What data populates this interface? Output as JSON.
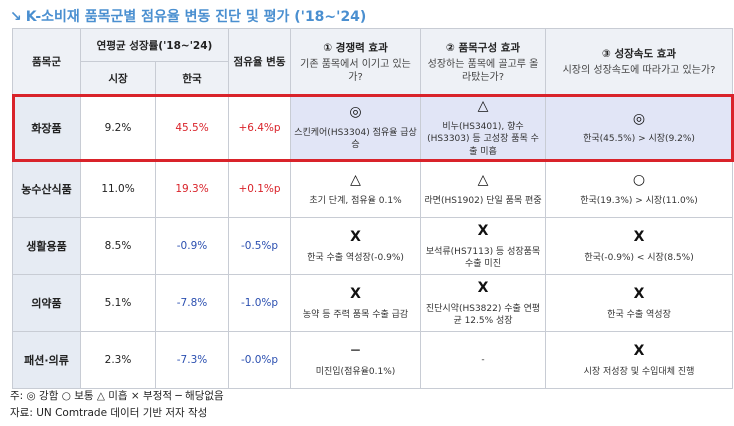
{
  "header": {
    "icon": "↘",
    "title": "K-소비재 품목군별 점유율 변동 진단 및 평가 ('18~'24)"
  },
  "table": {
    "columns": {
      "group": "품목군",
      "growth": "연평균 성장률('18~'24)",
      "market": "시장",
      "korea": "한국",
      "change": "점유율 변동",
      "effects": [
        {
          "title": "① 경쟁력 효과",
          "question": "기존 품목에서 이기고 있는가?"
        },
        {
          "title": "② 품목구성 효과",
          "question": "성장하는 품목에 골고루 올라탔는가?"
        },
        {
          "title": "③ 성장속도 효과",
          "question": "시장의 성장속도에 따라가고 있는가?"
        }
      ]
    },
    "rows": [
      {
        "name": "화장품",
        "market": "9.2%",
        "korea": "45.5%",
        "change": "+6.4%p",
        "effects": [
          {
            "mark": "◎",
            "text": "스킨케어(HS3304) 점유율 급상승"
          },
          {
            "mark": "△",
            "text": "비누(HS3401), 향수(HS3303) 등 고성장 품목 수출 미흡"
          },
          {
            "mark": "◎",
            "text": "한국(45.5%) > 시장(9.2%)"
          }
        ]
      },
      {
        "name": "농수산식품",
        "market": "11.0%",
        "korea": "19.3%",
        "change": "+0.1%p",
        "effects": [
          {
            "mark": "△",
            "text": "초기 단계, 점유율 0.1%"
          },
          {
            "mark": "△",
            "text": "라면(HS1902) 단일 품목 편중"
          },
          {
            "mark": "○",
            "text": "한국(19.3%) > 시장(11.0%)"
          }
        ]
      },
      {
        "name": "생활용품",
        "market": "8.5%",
        "korea": "-0.9%",
        "change": "-0.5%p",
        "effects": [
          {
            "mark": "X",
            "text": "한국 수출 역성장(-0.9%)"
          },
          {
            "mark": "X",
            "text": "보석류(HS7113) 등 성장품목 수출 미진"
          },
          {
            "mark": "X",
            "text": "한국(-0.9%) < 시장(8.5%)"
          }
        ]
      },
      {
        "name": "의약품",
        "market": "5.1%",
        "korea": "-7.8%",
        "change": "-1.0%p",
        "effects": [
          {
            "mark": "X",
            "text": "농약 등 주력 품목 수출 급감"
          },
          {
            "mark": "X",
            "text": "진단시약(HS3822) 수출 연평균 12.5% 성장"
          },
          {
            "mark": "X",
            "text": "한국 수출 역성장"
          }
        ]
      },
      {
        "name": "패션·의류",
        "market": "2.3%",
        "korea": "-7.3%",
        "change": "-0.0%p",
        "effects": [
          {
            "mark": "─",
            "text": "미진입(점유율0.1%)"
          },
          {
            "mark": "",
            "text": "-"
          },
          {
            "mark": "X",
            "text": "시장 저성장 및 수입대체 진행"
          }
        ]
      }
    ]
  },
  "footnotes": [
    "주: ◎ 강함 ○ 보통 △ 미흡 × 부정적 ─ 해당없음",
    "자료: UN Comtrade 데이터 기반 저자 작성"
  ]
}
